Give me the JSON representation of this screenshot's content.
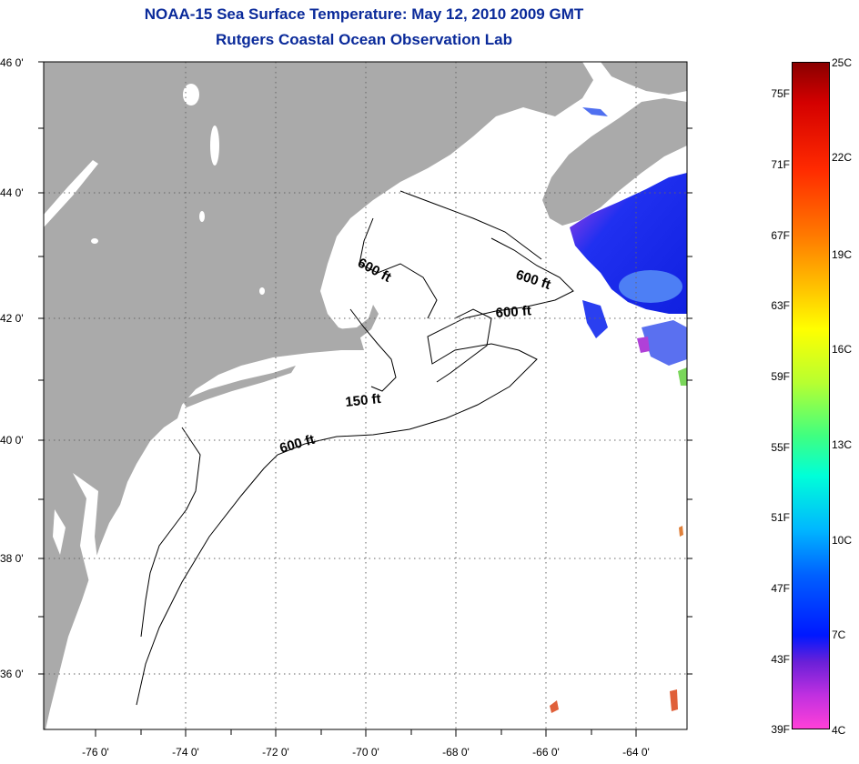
{
  "title": {
    "line1": "NOAA-15 Sea Surface Temperature:  May 12, 2010 2009 GMT",
    "line2": "Rutgers Coastal Ocean Observation Lab"
  },
  "map": {
    "lat_labels": [
      "46 0'",
      "44 0'",
      "42 0'",
      "40 0'",
      "38 0'",
      "36 0'"
    ],
    "lon_labels": [
      "-76 0'",
      "-74 0'",
      "-72 0'",
      "-70 0'",
      "-68 0'",
      "-66 0'",
      "-64 0'"
    ],
    "isobaths": [
      "600 ft",
      "600 ft",
      "600 ft",
      "150 ft",
      "600 ft"
    ],
    "colors": {
      "land": "#aaaaaa",
      "ocean": "#ffffff",
      "title": "#0a2a9a",
      "cold_water": "#1a2cf0"
    }
  },
  "colorbar": {
    "fahrenheit": [
      "75F",
      "71F",
      "67F",
      "63F",
      "59F",
      "55F",
      "51F",
      "47F",
      "43F",
      "39F"
    ],
    "celsius": [
      "25C",
      "22C",
      "19C",
      "16C",
      "13C",
      "10C",
      "7C",
      "4C"
    ]
  }
}
